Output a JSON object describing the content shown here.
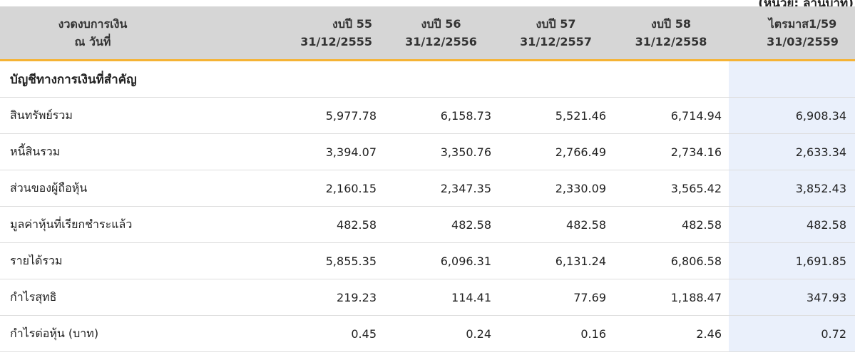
{
  "unit_note": "(หน่วย: ล้านบาท)",
  "header": {
    "label_line1": "งวดงบการเงิน",
    "label_line2": "ณ วันที่",
    "periods": [
      {
        "line1": "งบปี 55",
        "line2": "31/12/2555"
      },
      {
        "line1": "งบปี 56",
        "line2": "31/12/2556"
      },
      {
        "line1": "งบปี 57",
        "line2": "31/12/2557"
      },
      {
        "line1": "งบปี 58",
        "line2": "31/12/2558"
      },
      {
        "line1": "ไตรมาส1/59",
        "line2": "31/03/2559"
      }
    ]
  },
  "section_title": "บัญชีทางการเงินที่สำคัญ",
  "rows": [
    {
      "label": "สินทรัพย์รวม",
      "values": [
        "5,977.78",
        "6,158.73",
        "5,521.46",
        "6,714.94",
        "6,908.34"
      ]
    },
    {
      "label": "หนี้สินรวม",
      "values": [
        "3,394.07",
        "3,350.76",
        "2,766.49",
        "2,734.16",
        "2,633.34"
      ]
    },
    {
      "label": "ส่วนของผู้ถือหุ้น",
      "values": [
        "2,160.15",
        "2,347.35",
        "2,330.09",
        "3,565.42",
        "3,852.43"
      ]
    },
    {
      "label": "มูลค่าหุ้นที่เรียกชำระแล้ว",
      "values": [
        "482.58",
        "482.58",
        "482.58",
        "482.58",
        "482.58"
      ]
    },
    {
      "label": "รายได้รวม",
      "values": [
        "5,855.35",
        "6,096.31",
        "6,131.24",
        "6,806.58",
        "1,691.85"
      ]
    },
    {
      "label": "กำไรสุทธิ",
      "values": [
        "219.23",
        "114.41",
        "77.69",
        "1,188.47",
        "347.93"
      ]
    },
    {
      "label": "กำไรต่อหุ้น (บาท)",
      "values": [
        "0.45",
        "0.24",
        "0.16",
        "2.46",
        "0.72"
      ]
    }
  ]
}
